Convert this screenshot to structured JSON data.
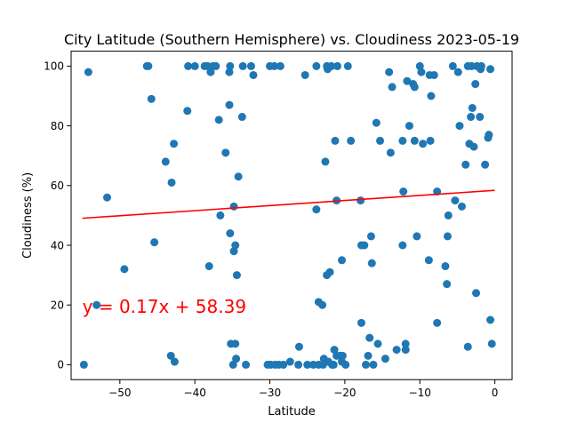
{
  "chart_data": {
    "type": "scatter",
    "title": "City Latitude (Southern Hemisphere) vs. Cloudiness 2023-05-19",
    "xlabel": "Latitude",
    "ylabel": "Cloudiness (%)",
    "xlim": [
      -56.5,
      2.3
    ],
    "ylim": [
      -5,
      105
    ],
    "xticks": [
      -50,
      -40,
      -30,
      -20,
      -10,
      0
    ],
    "xtick_labels": [
      "−50",
      "−40",
      "−30",
      "−20",
      "−10",
      "0"
    ],
    "yticks": [
      0,
      20,
      40,
      60,
      80,
      100
    ],
    "ytick_labels": [
      "0",
      "20",
      "40",
      "60",
      "80",
      "100"
    ],
    "grid": false,
    "annotation": "y = 0.17x + 58.39",
    "annotation_pos": [
      -55,
      19.5
    ],
    "regression": {
      "slope": 0.17,
      "intercept": 58.39,
      "x_range": [
        -55,
        0
      ]
    },
    "colors": {
      "points": "#1f77b4",
      "regression": "#ff0000",
      "annotation": "#ff0000"
    },
    "points": [
      [
        -54.8,
        0
      ],
      [
        -54.2,
        98
      ],
      [
        -53.1,
        20
      ],
      [
        -51.7,
        56
      ],
      [
        -49.4,
        32
      ],
      [
        -46.4,
        100
      ],
      [
        -46.2,
        100
      ],
      [
        -45.8,
        89
      ],
      [
        -45.4,
        41
      ],
      [
        -43.9,
        68
      ],
      [
        -43.1,
        61
      ],
      [
        -43.2,
        3
      ],
      [
        -42.8,
        74
      ],
      [
        -42.7,
        1
      ],
      [
        -41.0,
        85
      ],
      [
        -40.9,
        100
      ],
      [
        -40.0,
        100
      ],
      [
        -38.7,
        100
      ],
      [
        -38.3,
        100
      ],
      [
        -38.1,
        33
      ],
      [
        -37.9,
        98
      ],
      [
        -37.6,
        100
      ],
      [
        -37.2,
        100
      ],
      [
        -36.8,
        82
      ],
      [
        -36.6,
        50
      ],
      [
        -35.9,
        71
      ],
      [
        -35.4,
        98
      ],
      [
        -35.3,
        100
      ],
      [
        -35.4,
        87
      ],
      [
        -35.3,
        44
      ],
      [
        -35.2,
        7
      ],
      [
        -34.9,
        0
      ],
      [
        -34.8,
        53
      ],
      [
        -34.8,
        38
      ],
      [
        -34.6,
        40
      ],
      [
        -34.6,
        7
      ],
      [
        -34.5,
        2
      ],
      [
        -34.4,
        30
      ],
      [
        -34.2,
        63
      ],
      [
        -33.7,
        83
      ],
      [
        -33.6,
        100
      ],
      [
        -33.2,
        0
      ],
      [
        -32.5,
        100
      ],
      [
        -32.2,
        97
      ],
      [
        -30.3,
        0
      ],
      [
        -30.0,
        100
      ],
      [
        -29.9,
        0
      ],
      [
        -29.4,
        100
      ],
      [
        -29.3,
        0
      ],
      [
        -28.8,
        0
      ],
      [
        -28.6,
        100
      ],
      [
        -28.2,
        0
      ],
      [
        -27.3,
        1
      ],
      [
        -26.1,
        6
      ],
      [
        -26.2,
        0
      ],
      [
        -25.3,
        97
      ],
      [
        -25.0,
        0
      ],
      [
        -24.2,
        0
      ],
      [
        -23.8,
        100
      ],
      [
        -23.8,
        52
      ],
      [
        -23.5,
        21
      ],
      [
        -23.5,
        0
      ],
      [
        -23.0,
        20
      ],
      [
        -22.9,
        0
      ],
      [
        -22.8,
        2
      ],
      [
        -22.6,
        68
      ],
      [
        -22.4,
        100
      ],
      [
        -22.4,
        30
      ],
      [
        -22.3,
        99
      ],
      [
        -22.2,
        1
      ],
      [
        -22.0,
        31
      ],
      [
        -21.8,
        100
      ],
      [
        -21.7,
        0
      ],
      [
        -21.5,
        0
      ],
      [
        -21.4,
        5
      ],
      [
        -21.3,
        75
      ],
      [
        -21.1,
        3
      ],
      [
        -21.1,
        55
      ],
      [
        -21.0,
        100
      ],
      [
        -20.6,
        3
      ],
      [
        -20.4,
        35
      ],
      [
        -20.4,
        1
      ],
      [
        -20.3,
        3
      ],
      [
        -19.9,
        0
      ],
      [
        -19.6,
        100
      ],
      [
        -19.2,
        75
      ],
      [
        -17.9,
        55
      ],
      [
        -17.8,
        14
      ],
      [
        -17.8,
        40
      ],
      [
        -17.4,
        40
      ],
      [
        -17.2,
        0
      ],
      [
        -16.9,
        3
      ],
      [
        -16.7,
        9
      ],
      [
        -16.5,
        43
      ],
      [
        -16.4,
        34
      ],
      [
        -16.2,
        0
      ],
      [
        -15.8,
        81
      ],
      [
        -15.6,
        7
      ],
      [
        -15.3,
        75
      ],
      [
        -14.6,
        2
      ],
      [
        -14.1,
        98
      ],
      [
        -13.9,
        71
      ],
      [
        -13.7,
        93
      ],
      [
        -13.1,
        5
      ],
      [
        -12.3,
        75
      ],
      [
        -12.3,
        40
      ],
      [
        -12.2,
        58
      ],
      [
        -11.9,
        5
      ],
      [
        -11.9,
        7
      ],
      [
        -11.7,
        95
      ],
      [
        -11.4,
        80
      ],
      [
        -10.9,
        94
      ],
      [
        -10.7,
        75
      ],
      [
        -10.7,
        93
      ],
      [
        -10.4,
        43
      ],
      [
        -10.0,
        100
      ],
      [
        -9.8,
        98
      ],
      [
        -9.6,
        74
      ],
      [
        -8.8,
        35
      ],
      [
        -8.7,
        97
      ],
      [
        -8.6,
        75
      ],
      [
        -8.5,
        90
      ],
      [
        -8.1,
        97
      ],
      [
        -7.7,
        58
      ],
      [
        -7.7,
        14
      ],
      [
        -6.6,
        33
      ],
      [
        -6.4,
        27
      ],
      [
        -6.3,
        43
      ],
      [
        -6.2,
        50
      ],
      [
        -5.6,
        100
      ],
      [
        -5.3,
        55
      ],
      [
        -4.9,
        98
      ],
      [
        -4.7,
        80
      ],
      [
        -4.4,
        53
      ],
      [
        -3.9,
        67
      ],
      [
        -3.6,
        6
      ],
      [
        -3.6,
        100
      ],
      [
        -3.4,
        74
      ],
      [
        -3.2,
        83
      ],
      [
        -3.1,
        100
      ],
      [
        -3.0,
        86
      ],
      [
        -2.8,
        73
      ],
      [
        -2.6,
        94
      ],
      [
        -2.5,
        24
      ],
      [
        -2.4,
        100
      ],
      [
        -2.0,
        83
      ],
      [
        -1.9,
        99
      ],
      [
        -1.8,
        100
      ],
      [
        -1.3,
        67
      ],
      [
        -0.9,
        76
      ],
      [
        -0.8,
        77
      ],
      [
        -0.6,
        15
      ],
      [
        -0.6,
        99
      ],
      [
        -0.4,
        7
      ]
    ]
  }
}
